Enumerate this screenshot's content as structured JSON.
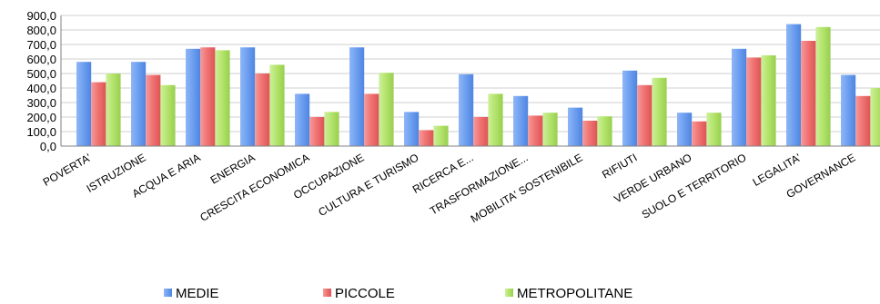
{
  "chart_data": {
    "type": "bar",
    "categories": [
      "POVERTA'",
      "ISTRUZIONE",
      "ACQUA E ARIA",
      "ENERGIA",
      "CRESCITA ECONOMICA",
      "OCCUPAZIONE",
      "CULTURA E TURISMO",
      "RICERCA E...",
      "TRASFORMAZIONE...",
      "MOBILITA' SOSTENIBILE",
      "RIFIUTI",
      "VERDE URBANO",
      "SUOLO E TERRITORIO",
      "LEGALITA'",
      "GOVERNANCE"
    ],
    "series": [
      {
        "name": "MEDIE",
        "color": "#6c9ef0",
        "values": [
          580,
          580,
          670,
          680,
          360,
          680,
          235,
          495,
          345,
          265,
          520,
          230,
          670,
          840,
          490
        ]
      },
      {
        "name": "PICCOLE",
        "color": "#f07070",
        "values": [
          440,
          490,
          680,
          500,
          200,
          360,
          110,
          200,
          210,
          175,
          420,
          170,
          610,
          725,
          345
        ]
      },
      {
        "name": "METROPOLITANE",
        "color": "#b2e36a",
        "values": [
          500,
          420,
          660,
          560,
          235,
          505,
          140,
          360,
          230,
          205,
          470,
          230,
          625,
          820,
          400
        ]
      }
    ],
    "y_ticks": [
      "0,0",
      "100,0",
      "200,0",
      "300,0",
      "400,0",
      "500,0",
      "600,0",
      "700,0",
      "800,0",
      "900,0"
    ],
    "ylim": [
      0,
      900
    ],
    "grid": true,
    "legend_position": "bottom"
  }
}
